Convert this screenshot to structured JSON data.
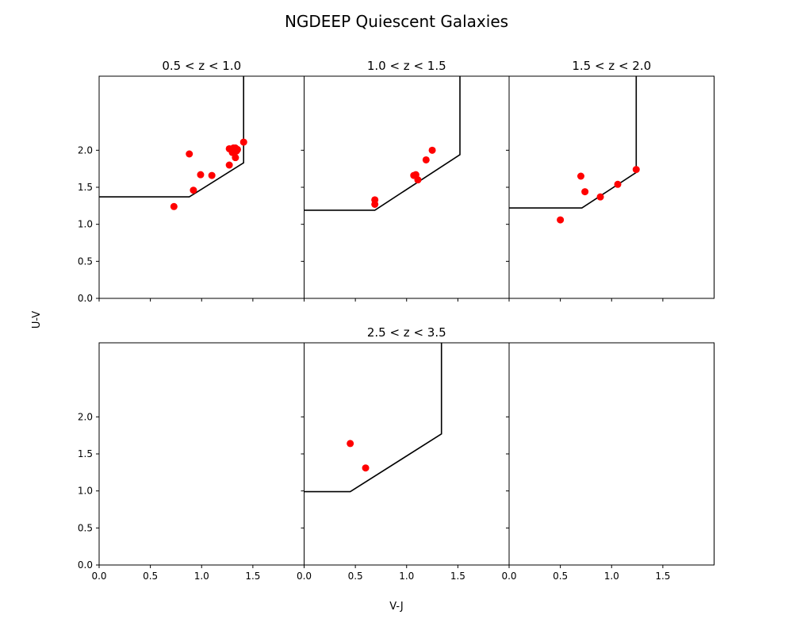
{
  "figure": {
    "suptitle": "NGDEEP Quiescent Galaxies",
    "xlabel": "V-J",
    "ylabel": "U-V"
  },
  "chart_data": {
    "type": "scatter",
    "xlim": [
      0,
      2
    ],
    "ylim": [
      0,
      3
    ],
    "xticks": [
      "0.0",
      "0.5",
      "1.0",
      "1.5"
    ],
    "yticks": [
      "0.0",
      "0.5",
      "1.0",
      "1.5",
      "2.0"
    ],
    "point_color": "#ff0000",
    "line_color": "#000000",
    "panels": [
      {
        "title": "0.5 < z < 1.0",
        "boundary": [
          [
            0,
            1.37
          ],
          [
            0.88,
            1.37
          ],
          [
            1.41,
            1.83
          ],
          [
            1.41,
            3
          ]
        ],
        "points": [
          [
            0.73,
            1.24
          ],
          [
            0.88,
            1.95
          ],
          [
            0.92,
            1.46
          ],
          [
            0.99,
            1.67
          ],
          [
            1.1,
            1.66
          ],
          [
            1.27,
            1.8
          ],
          [
            1.27,
            2.02
          ],
          [
            1.29,
            2.01
          ],
          [
            1.3,
            1.97
          ],
          [
            1.31,
            2.03
          ],
          [
            1.32,
            1.97
          ],
          [
            1.33,
            1.9
          ],
          [
            1.33,
            2.03
          ],
          [
            1.34,
            1.99
          ],
          [
            1.35,
            2.01
          ],
          [
            1.41,
            2.11
          ]
        ]
      },
      {
        "title": "1.0 < z < 1.5",
        "boundary": [
          [
            0,
            1.19
          ],
          [
            0.69,
            1.19
          ],
          [
            1.52,
            1.94
          ],
          [
            1.52,
            3
          ]
        ],
        "points": [
          [
            0.69,
            1.27
          ],
          [
            0.69,
            1.33
          ],
          [
            1.07,
            1.66
          ],
          [
            1.09,
            1.67
          ],
          [
            1.11,
            1.6
          ],
          [
            1.19,
            1.87
          ],
          [
            1.25,
            2.0
          ]
        ]
      },
      {
        "title": "1.5 < z < 2.0",
        "boundary": [
          [
            0,
            1.22
          ],
          [
            0.71,
            1.22
          ],
          [
            1.24,
            1.7
          ],
          [
            1.24,
            3
          ]
        ],
        "points": [
          [
            0.5,
            1.06
          ],
          [
            0.7,
            1.65
          ],
          [
            0.74,
            1.44
          ],
          [
            0.89,
            1.37
          ],
          [
            1.06,
            1.54
          ],
          [
            1.24,
            1.74
          ]
        ]
      },
      {
        "title": "",
        "boundary": [],
        "points": []
      },
      {
        "title": "2.5 < z < 3.5",
        "boundary": [
          [
            0,
            0.99
          ],
          [
            0.45,
            0.99
          ],
          [
            1.34,
            1.77
          ],
          [
            1.34,
            3
          ]
        ],
        "points": [
          [
            0.45,
            1.64
          ],
          [
            0.6,
            1.31
          ]
        ]
      },
      {
        "title": "",
        "boundary": [],
        "points": []
      }
    ]
  }
}
